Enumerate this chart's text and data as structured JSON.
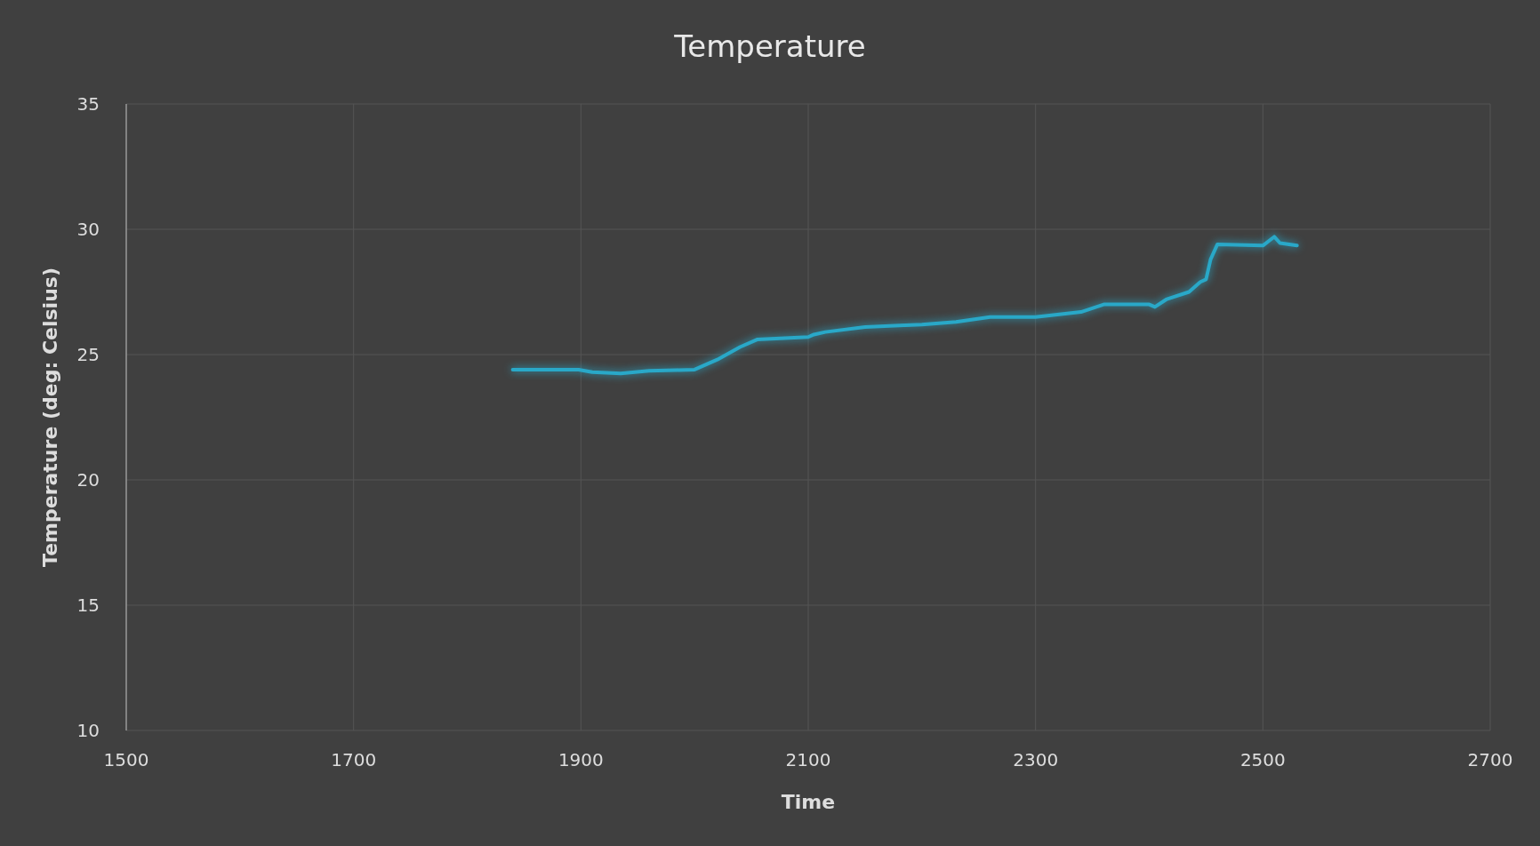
{
  "chart_data": {
    "type": "line",
    "title": "Temperature",
    "xlabel": "Time",
    "ylabel": "Temperature (deg: Celsius)",
    "xlim": [
      1500,
      2700
    ],
    "xticks": [
      1500,
      1700,
      1900,
      2100,
      2300,
      2500,
      2700
    ],
    "ylim": [
      10,
      35
    ],
    "yticks": [
      10,
      15,
      20,
      25,
      30,
      35
    ],
    "grid": true,
    "series": [
      {
        "color": "#29a8c8",
        "x": [
          1840,
          1898,
          1910,
          1935,
          1960,
          2000,
          2020,
          2040,
          2055,
          2100,
          2105,
          2115,
          2150,
          2200,
          2230,
          2260,
          2300,
          2340,
          2360,
          2400,
          2405,
          2415,
          2435,
          2445,
          2450,
          2454,
          2460,
          2500,
          2510,
          2515,
          2530
        ],
        "values": [
          24.4,
          24.4,
          24.3,
          24.25,
          24.35,
          24.4,
          24.8,
          25.3,
          25.6,
          25.7,
          25.8,
          25.9,
          26.1,
          26.2,
          26.3,
          26.5,
          26.5,
          26.7,
          27.0,
          27.0,
          26.9,
          27.2,
          27.5,
          27.9,
          28.0,
          28.8,
          29.4,
          29.35,
          29.7,
          29.45,
          29.35
        ]
      }
    ]
  }
}
